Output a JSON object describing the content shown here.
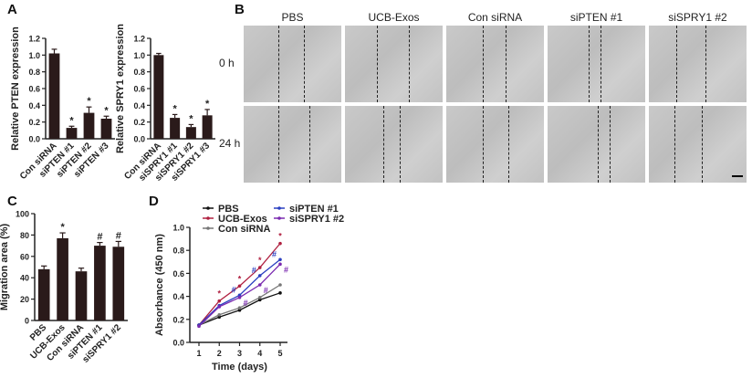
{
  "panels": {
    "A": "A",
    "B": "B",
    "C": "C",
    "D": "D"
  },
  "wound_assay": {
    "columns": [
      "PBS",
      "UCB-Exos",
      "Con siRNA",
      "siPTEN #1",
      "siSPRY1 #2"
    ],
    "rows": [
      "0 h",
      "24 h"
    ]
  },
  "chart_data": [
    {
      "id": "A-left",
      "type": "bar",
      "ylabel": "Relative PTEN expression",
      "ylim": [
        0,
        1.2
      ],
      "yticks": [
        "0.0",
        "0.2",
        "0.4",
        "0.6",
        "0.8",
        "1.0",
        "1.2"
      ],
      "categories": [
        "Con siRNA",
        "siPTEN #1",
        "siPTEN #2",
        "siPTEN #3"
      ],
      "values": [
        1.02,
        0.13,
        0.31,
        0.24
      ],
      "errors": [
        0.05,
        0.02,
        0.07,
        0.03
      ],
      "annotations": [
        "",
        "*",
        "*",
        "*"
      ],
      "bar_color": "#2a1a1a"
    },
    {
      "id": "A-right",
      "type": "bar",
      "ylabel": "Relative SPRY1 expression",
      "ylim": [
        0,
        1.2
      ],
      "yticks": [
        "0.0",
        "0.2",
        "0.4",
        "0.6",
        "0.8",
        "1.0",
        "1.2"
      ],
      "categories": [
        "Con siRNA",
        "siSPRY1 #1",
        "siSPRY1 #2",
        "siSPRY1 #3"
      ],
      "values": [
        1.0,
        0.25,
        0.14,
        0.28
      ],
      "errors": [
        0.02,
        0.04,
        0.03,
        0.07
      ],
      "annotations": [
        "",
        "*",
        "*",
        "*"
      ],
      "bar_color": "#2a1a1a"
    },
    {
      "id": "C",
      "type": "bar",
      "ylabel": "Migration area (%)",
      "ylim": [
        0,
        100
      ],
      "yticks": [
        "0",
        "20",
        "40",
        "60",
        "80",
        "100"
      ],
      "categories": [
        "PBS",
        "UCB-Exos",
        "Con siRNA",
        "siPTEN #1",
        "siSPRY1 #2"
      ],
      "values": [
        48,
        77,
        46,
        70,
        69
      ],
      "errors": [
        3,
        5,
        3,
        3,
        5
      ],
      "annotations": [
        "",
        "*",
        "",
        "#",
        "#"
      ],
      "bar_color": "#2a1a1a"
    },
    {
      "id": "D",
      "type": "line",
      "xlabel": "Time (days)",
      "ylabel": "Absorbance (450 nm)",
      "ylim": [
        0,
        1.0
      ],
      "xlim": [
        1,
        5
      ],
      "x": [
        1,
        2,
        3,
        4,
        5
      ],
      "xticks": [
        "1",
        "2",
        "3",
        "4",
        "5"
      ],
      "yticks": [
        "0.0",
        "0.2",
        "0.4",
        "0.6",
        "0.8",
        "1.0"
      ],
      "series": [
        {
          "name": "PBS",
          "color": "#111111",
          "values": [
            0.15,
            0.22,
            0.28,
            0.37,
            0.43
          ],
          "annotations": [
            "",
            "",
            "",
            "",
            ""
          ]
        },
        {
          "name": "UCB-Exos",
          "color": "#b02040",
          "values": [
            0.15,
            0.36,
            0.49,
            0.65,
            0.86
          ],
          "annotations": [
            "",
            "*",
            "*",
            "*",
            "*"
          ]
        },
        {
          "name": "Con siRNA",
          "color": "#777777",
          "values": [
            0.15,
            0.24,
            0.3,
            0.39,
            0.5
          ],
          "annotations": [
            "",
            "",
            "",
            "",
            ""
          ]
        },
        {
          "name": "siPTEN #1",
          "color": "#2a3fc0",
          "values": [
            0.15,
            0.32,
            0.41,
            0.58,
            0.72
          ],
          "annotations": [
            "",
            "",
            "#",
            "#",
            "#"
          ]
        },
        {
          "name": "siSPRY1 #2",
          "color": "#7a2ab0",
          "values": [
            0.14,
            0.31,
            0.39,
            0.5,
            0.68
          ],
          "annotations": [
            "",
            "",
            "#",
            "#",
            "#"
          ]
        }
      ]
    }
  ]
}
